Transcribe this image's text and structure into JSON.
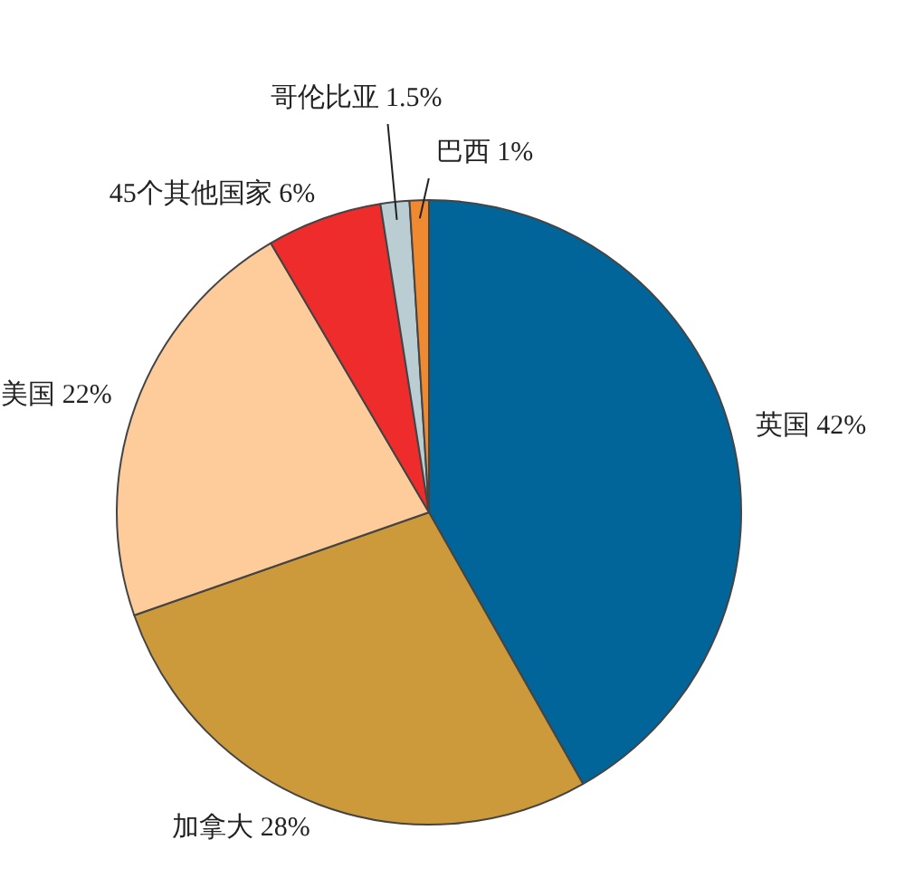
{
  "chart_data": {
    "type": "pie",
    "categories": [
      "英国",
      "加拿大",
      "美国",
      "45个其他国家",
      "哥伦比亚",
      "巴西"
    ],
    "values": [
      42,
      28,
      22,
      6,
      1.5,
      1
    ],
    "colors": [
      "#01659a",
      "#cc9a3a",
      "#fdcc9a",
      "#ee2c2c",
      "#b9cdd3",
      "#f08a30"
    ],
    "value_labels": [
      "42%",
      "28%",
      "22%",
      "6%",
      "1.5%",
      "1%"
    ],
    "legend": false
  }
}
